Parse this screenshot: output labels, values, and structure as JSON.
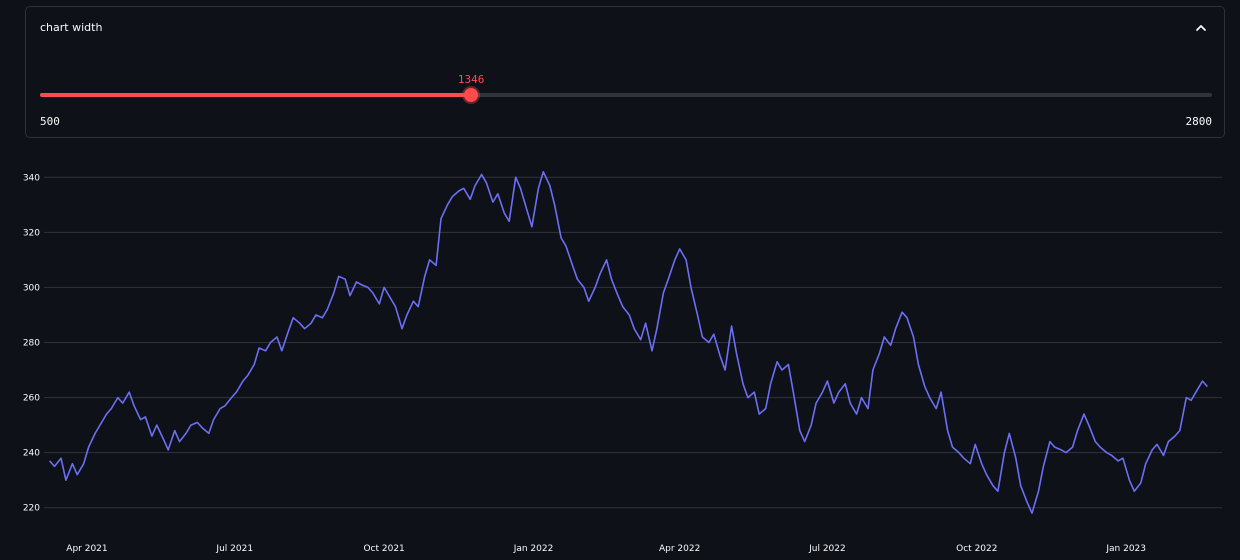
{
  "expander": {
    "title": "chart width",
    "collapse_icon": "chevron-up-icon"
  },
  "slider": {
    "min": 500,
    "max": 2800,
    "value": 1346,
    "min_label": "500",
    "max_label": "2800",
    "value_label": "1346",
    "accent_color": "#ff4b4b"
  },
  "chart_data": {
    "type": "line",
    "title": "",
    "xlabel": "",
    "ylabel": "",
    "ylim": [
      213,
      347
    ],
    "xlim": [
      "2021-03-08",
      "2023-03-01"
    ],
    "grid": true,
    "line_color": "#6c6ff5",
    "yticks": [
      220,
      240,
      260,
      280,
      300,
      320,
      340
    ],
    "xticks": [
      {
        "date": "2021-04-01",
        "label": "Apr 2021"
      },
      {
        "date": "2021-07-01",
        "label": "Jul 2021"
      },
      {
        "date": "2021-10-01",
        "label": "Oct 2021"
      },
      {
        "date": "2022-01-01",
        "label": "Jan 2022"
      },
      {
        "date": "2022-04-01",
        "label": "Apr 2022"
      },
      {
        "date": "2022-07-01",
        "label": "Jul 2022"
      },
      {
        "date": "2022-10-01",
        "label": "Oct 2022"
      },
      {
        "date": "2023-01-01",
        "label": "Jan 2023"
      }
    ],
    "series": [
      {
        "points": [
          [
            "2021-03-09",
            237
          ],
          [
            "2021-03-12",
            235
          ],
          [
            "2021-03-16",
            238
          ],
          [
            "2021-03-19",
            230
          ],
          [
            "2021-03-23",
            236
          ],
          [
            "2021-03-26",
            232
          ],
          [
            "2021-03-30",
            236
          ],
          [
            "2021-04-02",
            242
          ],
          [
            "2021-04-06",
            247
          ],
          [
            "2021-04-09",
            250
          ],
          [
            "2021-04-13",
            254
          ],
          [
            "2021-04-16",
            256
          ],
          [
            "2021-04-20",
            260
          ],
          [
            "2021-04-23",
            258
          ],
          [
            "2021-04-27",
            262
          ],
          [
            "2021-04-30",
            257
          ],
          [
            "2021-05-04",
            252
          ],
          [
            "2021-05-07",
            253
          ],
          [
            "2021-05-11",
            246
          ],
          [
            "2021-05-14",
            250
          ],
          [
            "2021-05-18",
            245
          ],
          [
            "2021-05-21",
            241
          ],
          [
            "2021-05-25",
            248
          ],
          [
            "2021-05-28",
            244
          ],
          [
            "2021-06-01",
            247
          ],
          [
            "2021-06-04",
            250
          ],
          [
            "2021-06-08",
            251
          ],
          [
            "2021-06-11",
            249
          ],
          [
            "2021-06-15",
            247
          ],
          [
            "2021-06-18",
            252
          ],
          [
            "2021-06-22",
            256
          ],
          [
            "2021-06-25",
            257
          ],
          [
            "2021-06-29",
            260
          ],
          [
            "2021-07-02",
            262
          ],
          [
            "2021-07-06",
            266
          ],
          [
            "2021-07-09",
            268
          ],
          [
            "2021-07-13",
            272
          ],
          [
            "2021-07-16",
            278
          ],
          [
            "2021-07-20",
            277
          ],
          [
            "2021-07-23",
            280
          ],
          [
            "2021-07-27",
            282
          ],
          [
            "2021-07-30",
            277
          ],
          [
            "2021-08-03",
            284
          ],
          [
            "2021-08-06",
            289
          ],
          [
            "2021-08-10",
            287
          ],
          [
            "2021-08-13",
            285
          ],
          [
            "2021-08-17",
            287
          ],
          [
            "2021-08-20",
            290
          ],
          [
            "2021-08-24",
            289
          ],
          [
            "2021-08-27",
            292
          ],
          [
            "2021-08-31",
            298
          ],
          [
            "2021-09-03",
            304
          ],
          [
            "2021-09-07",
            303
          ],
          [
            "2021-09-10",
            297
          ],
          [
            "2021-09-14",
            302
          ],
          [
            "2021-09-17",
            301
          ],
          [
            "2021-09-21",
            300
          ],
          [
            "2021-09-24",
            298
          ],
          [
            "2021-09-28",
            294
          ],
          [
            "2021-10-01",
            300
          ],
          [
            "2021-10-05",
            296
          ],
          [
            "2021-10-08",
            293
          ],
          [
            "2021-10-12",
            285
          ],
          [
            "2021-10-15",
            290
          ],
          [
            "2021-10-19",
            295
          ],
          [
            "2021-10-22",
            293
          ],
          [
            "2021-10-26",
            304
          ],
          [
            "2021-10-29",
            310
          ],
          [
            "2021-11-02",
            308
          ],
          [
            "2021-11-05",
            325
          ],
          [
            "2021-11-09",
            330
          ],
          [
            "2021-11-12",
            333
          ],
          [
            "2021-11-16",
            335
          ],
          [
            "2021-11-19",
            336
          ],
          [
            "2021-11-23",
            332
          ],
          [
            "2021-11-26",
            337
          ],
          [
            "2021-11-30",
            341
          ],
          [
            "2021-12-03",
            338
          ],
          [
            "2021-12-07",
            331
          ],
          [
            "2021-12-10",
            334
          ],
          [
            "2021-12-14",
            327
          ],
          [
            "2021-12-17",
            324
          ],
          [
            "2021-12-21",
            340
          ],
          [
            "2021-12-24",
            336
          ],
          [
            "2021-12-28",
            328
          ],
          [
            "2021-12-31",
            322
          ],
          [
            "2022-01-04",
            336
          ],
          [
            "2022-01-07",
            342
          ],
          [
            "2022-01-11",
            337
          ],
          [
            "2022-01-14",
            330
          ],
          [
            "2022-01-18",
            318
          ],
          [
            "2022-01-21",
            315
          ],
          [
            "2022-01-25",
            308
          ],
          [
            "2022-01-28",
            303
          ],
          [
            "2022-02-01",
            300
          ],
          [
            "2022-02-04",
            295
          ],
          [
            "2022-02-08",
            300
          ],
          [
            "2022-02-11",
            305
          ],
          [
            "2022-02-15",
            310
          ],
          [
            "2022-02-18",
            303
          ],
          [
            "2022-02-22",
            297
          ],
          [
            "2022-02-25",
            293
          ],
          [
            "2022-03-01",
            290
          ],
          [
            "2022-03-04",
            285
          ],
          [
            "2022-03-08",
            281
          ],
          [
            "2022-03-11",
            287
          ],
          [
            "2022-03-15",
            277
          ],
          [
            "2022-03-18",
            285
          ],
          [
            "2022-03-22",
            298
          ],
          [
            "2022-03-25",
            303
          ],
          [
            "2022-03-29",
            310
          ],
          [
            "2022-04-01",
            314
          ],
          [
            "2022-04-05",
            310
          ],
          [
            "2022-04-08",
            300
          ],
          [
            "2022-04-12",
            290
          ],
          [
            "2022-04-15",
            282
          ],
          [
            "2022-04-19",
            280
          ],
          [
            "2022-04-22",
            283
          ],
          [
            "2022-04-26",
            275
          ],
          [
            "2022-04-29",
            270
          ],
          [
            "2022-05-03",
            286
          ],
          [
            "2022-05-06",
            276
          ],
          [
            "2022-05-10",
            265
          ],
          [
            "2022-05-13",
            260
          ],
          [
            "2022-05-17",
            262
          ],
          [
            "2022-05-20",
            254
          ],
          [
            "2022-05-24",
            256
          ],
          [
            "2022-05-27",
            265
          ],
          [
            "2022-05-31",
            273
          ],
          [
            "2022-06-03",
            270
          ],
          [
            "2022-06-07",
            272
          ],
          [
            "2022-06-10",
            262
          ],
          [
            "2022-06-14",
            248
          ],
          [
            "2022-06-17",
            244
          ],
          [
            "2022-06-21",
            250
          ],
          [
            "2022-06-24",
            258
          ],
          [
            "2022-06-28",
            262
          ],
          [
            "2022-07-01",
            266
          ],
          [
            "2022-07-05",
            258
          ],
          [
            "2022-07-08",
            262
          ],
          [
            "2022-07-12",
            265
          ],
          [
            "2022-07-15",
            258
          ],
          [
            "2022-07-19",
            254
          ],
          [
            "2022-07-22",
            260
          ],
          [
            "2022-07-26",
            256
          ],
          [
            "2022-07-29",
            270
          ],
          [
            "2022-08-02",
            276
          ],
          [
            "2022-08-05",
            282
          ],
          [
            "2022-08-09",
            279
          ],
          [
            "2022-08-12",
            285
          ],
          [
            "2022-08-16",
            291
          ],
          [
            "2022-08-19",
            289
          ],
          [
            "2022-08-23",
            282
          ],
          [
            "2022-08-26",
            272
          ],
          [
            "2022-08-30",
            264
          ],
          [
            "2022-09-02",
            260
          ],
          [
            "2022-09-06",
            256
          ],
          [
            "2022-09-09",
            262
          ],
          [
            "2022-09-13",
            248
          ],
          [
            "2022-09-16",
            242
          ],
          [
            "2022-09-20",
            240
          ],
          [
            "2022-09-23",
            238
          ],
          [
            "2022-09-27",
            236
          ],
          [
            "2022-09-30",
            243
          ],
          [
            "2022-10-04",
            236
          ],
          [
            "2022-10-07",
            232
          ],
          [
            "2022-10-11",
            228
          ],
          [
            "2022-10-14",
            226
          ],
          [
            "2022-10-18",
            240
          ],
          [
            "2022-10-21",
            247
          ],
          [
            "2022-10-25",
            238
          ],
          [
            "2022-10-28",
            228
          ],
          [
            "2022-11-01",
            222
          ],
          [
            "2022-11-04",
            218
          ],
          [
            "2022-11-08",
            226
          ],
          [
            "2022-11-11",
            235
          ],
          [
            "2022-11-15",
            244
          ],
          [
            "2022-11-18",
            242
          ],
          [
            "2022-11-22",
            241
          ],
          [
            "2022-11-25",
            240
          ],
          [
            "2022-11-29",
            242
          ],
          [
            "2022-12-02",
            248
          ],
          [
            "2022-12-06",
            254
          ],
          [
            "2022-12-09",
            250
          ],
          [
            "2022-12-13",
            244
          ],
          [
            "2022-12-16",
            242
          ],
          [
            "2022-12-20",
            240
          ],
          [
            "2022-12-23",
            239
          ],
          [
            "2022-12-27",
            237
          ],
          [
            "2022-12-30",
            238
          ],
          [
            "2023-01-03",
            230
          ],
          [
            "2023-01-06",
            226
          ],
          [
            "2023-01-10",
            229
          ],
          [
            "2023-01-13",
            236
          ],
          [
            "2023-01-17",
            241
          ],
          [
            "2023-01-20",
            243
          ],
          [
            "2023-01-24",
            239
          ],
          [
            "2023-01-27",
            244
          ],
          [
            "2023-01-31",
            246
          ],
          [
            "2023-02-03",
            248
          ],
          [
            "2023-02-07",
            260
          ],
          [
            "2023-02-10",
            259
          ],
          [
            "2023-02-14",
            263
          ],
          [
            "2023-02-17",
            266
          ],
          [
            "2023-02-20",
            264
          ]
        ]
      }
    ]
  }
}
